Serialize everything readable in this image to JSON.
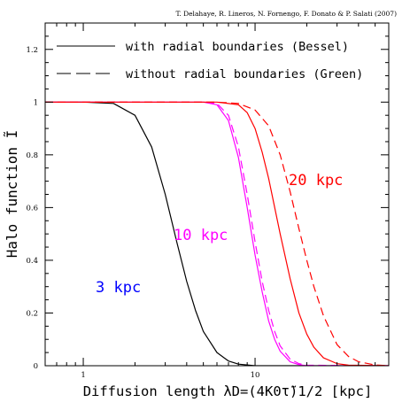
{
  "chart_data": {
    "type": "line",
    "credit": "T. Delahaye, R. Lineros, N. Fornengo, F. Donato & P. Salati (2007)",
    "ylabel": "Halo function Ĩ",
    "xlabel": "Diffusion length λD=(4K0τ̃)1/2   [kpc]",
    "xscale": "log",
    "xlim": [
      0.6,
      60
    ],
    "ylim": [
      0,
      1.3
    ],
    "yticks": [
      0,
      0.2,
      0.4,
      0.6,
      0.8,
      1,
      1.2
    ],
    "ytick_labels": [
      "0",
      "0.2",
      "0.4",
      "0.6",
      "0.8",
      "1",
      "1.2"
    ],
    "xticks": [
      1,
      10
    ],
    "xtick_labels": [
      "1",
      "10"
    ],
    "legend": {
      "placement": "top-left",
      "entries": [
        {
          "label": "with radial boundaries (Bessel)",
          "style": "solid"
        },
        {
          "label": "without radial boundaries (Green)",
          "style": "dashed"
        }
      ]
    },
    "annotations": [
      {
        "text": "20 kpc",
        "color": "#ff0000"
      },
      {
        "text": "10 kpc",
        "color": "#ff00ff"
      },
      {
        "text": "3 kpc",
        "color": "#0000ff"
      }
    ],
    "series": [
      {
        "color": "#000000",
        "style": "solid",
        "x": [
          0.6,
          1.0,
          1.5,
          2.0,
          2.5,
          3.0,
          3.5,
          4.0,
          4.5,
          5.0,
          6.0,
          7.0,
          8.0,
          10.0,
          60
        ],
        "y": [
          1.0,
          1.0,
          0.995,
          0.95,
          0.83,
          0.65,
          0.47,
          0.32,
          0.21,
          0.13,
          0.05,
          0.018,
          0.006,
          0.0,
          0.0
        ]
      },
      {
        "color": "#ff00ff",
        "style": "solid",
        "x": [
          0.6,
          5.0,
          6.0,
          7.0,
          8.0,
          9.0,
          10.0,
          11.0,
          12.0,
          13.0,
          14.0,
          16.0,
          18.0,
          20.0,
          60
        ],
        "y": [
          1.0,
          1.0,
          0.99,
          0.93,
          0.79,
          0.6,
          0.42,
          0.28,
          0.17,
          0.1,
          0.055,
          0.015,
          0.004,
          0.0,
          0.0
        ]
      },
      {
        "color": "#ff00ff",
        "style": "dashed",
        "x": [
          0.6,
          5.0,
          6.0,
          7.0,
          8.0,
          9.0,
          10.0,
          11.0,
          12.0,
          13.0,
          14.0,
          16.0,
          18.0,
          20.0,
          60
        ],
        "y": [
          1.0,
          1.0,
          0.995,
          0.95,
          0.83,
          0.65,
          0.47,
          0.32,
          0.21,
          0.13,
          0.075,
          0.025,
          0.008,
          0.002,
          0.0
        ]
      },
      {
        "color": "#ff0000",
        "style": "solid",
        "x": [
          0.6,
          6.0,
          8.0,
          9.0,
          10.0,
          11.0,
          12.0,
          14.0,
          16.0,
          18.0,
          20.0,
          22.0,
          25.0,
          30.0,
          35.0,
          60
        ],
        "y": [
          1.0,
          1.0,
          0.99,
          0.96,
          0.9,
          0.81,
          0.71,
          0.5,
          0.33,
          0.2,
          0.12,
          0.07,
          0.03,
          0.008,
          0.002,
          0.0
        ]
      },
      {
        "color": "#ff0000",
        "style": "dashed",
        "x": [
          0.6,
          6.0,
          8.0,
          10.0,
          12.0,
          14.0,
          16.0,
          18.0,
          20.0,
          22.0,
          25.0,
          30.0,
          35.0,
          40.0,
          50.0,
          60
        ],
        "y": [
          1.0,
          1.0,
          0.995,
          0.97,
          0.91,
          0.8,
          0.66,
          0.52,
          0.4,
          0.3,
          0.19,
          0.08,
          0.035,
          0.015,
          0.003,
          0.0
        ]
      }
    ]
  }
}
